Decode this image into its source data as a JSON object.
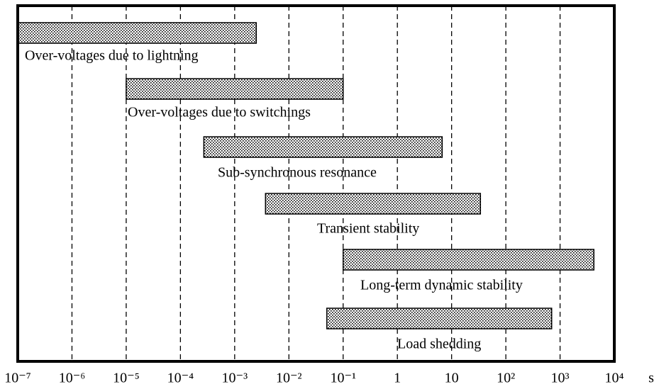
{
  "chart_data": {
    "type": "range-bar",
    "x_unit": "s",
    "categories": [
      "Over-voltages due to lightning",
      "Over-voltages due to switchings",
      "Sub-synchronous resonance",
      "Transient stability",
      "Long-term dynamic stability",
      "Load shedding"
    ],
    "start": [
      1e-07,
      1e-05,
      0.00027,
      0.0037,
      0.1,
      0.05
    ],
    "end": [
      0.0025,
      0.1,
      6.7,
      34,
      4200,
      700
    ],
    "color": "#c8c8c8",
    "log_x": true,
    "grid": true,
    "xlim": [
      1e-07,
      10000
    ],
    "xticks": [
      {
        "value": 1e-07,
        "label": "10⁻⁷"
      },
      {
        "value": 1e-06,
        "label": "10⁻⁶"
      },
      {
        "value": 1e-05,
        "label": "10⁻⁵"
      },
      {
        "value": 0.0001,
        "label": "10⁻⁴"
      },
      {
        "value": 0.001,
        "label": "10⁻³"
      },
      {
        "value": 0.01,
        "label": "10⁻²"
      },
      {
        "value": 0.1,
        "label": "10⁻¹"
      },
      1,
      10,
      {
        "value": 100,
        "label": "10²"
      },
      {
        "value": 1000,
        "label": "10³"
      },
      {
        "value": 10000,
        "label": "10⁴"
      }
    ]
  }
}
